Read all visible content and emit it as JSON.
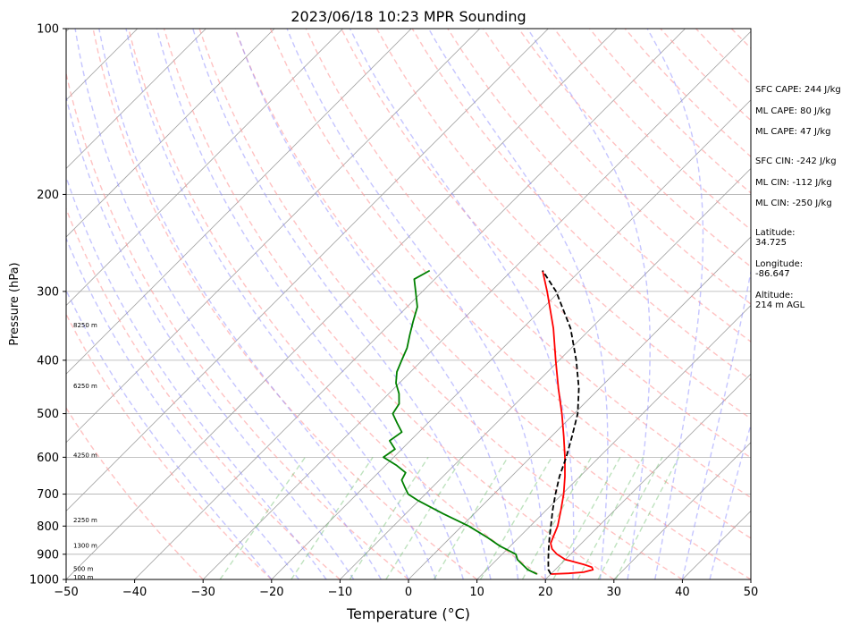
{
  "chart_data": {
    "type": "line",
    "title": "2023/06/18 10:23 MPR Sounding",
    "xlabel": "Temperature (°C)",
    "ylabel": "Pressure (hPa)",
    "xlim": [
      -50,
      50
    ],
    "ylim": [
      1000,
      100
    ],
    "y_scale": "log",
    "grid": true,
    "x_ticks": [
      -50,
      -40,
      -30,
      -20,
      -10,
      0,
      10,
      20,
      30,
      40,
      50
    ],
    "x_tick_labels": [
      "−50",
      "−40",
      "−30",
      "−20",
      "−10",
      "0",
      "10",
      "20",
      "30",
      "40",
      "50"
    ],
    "y_ticks": [
      100,
      200,
      300,
      400,
      500,
      600,
      700,
      800,
      900,
      1000
    ],
    "y_tick_labels": [
      "100",
      "200",
      "300",
      "400",
      "500",
      "600",
      "700",
      "800",
      "900",
      "1000"
    ],
    "height_labels": [
      {
        "p": 345,
        "label": "8250 m"
      },
      {
        "p": 445,
        "label": "6250 m"
      },
      {
        "p": 595,
        "label": "4250 m"
      },
      {
        "p": 780,
        "label": "2250 m"
      },
      {
        "p": 868,
        "label": "1300 m"
      },
      {
        "p": 957,
        "label": "500 m"
      },
      {
        "p": 990,
        "label": "100 m"
      }
    ],
    "series": [
      {
        "role": "temperature",
        "color": "#ff0000",
        "style": "solid",
        "p": [
          978,
          975,
          970,
          960,
          950,
          940,
          930,
          920,
          900,
          880,
          860,
          840,
          820,
          800,
          750,
          700,
          650,
          600,
          550,
          500,
          450,
          400,
          350,
          300,
          275
        ],
        "t": [
          20.0,
          22.5,
          24.5,
          25.5,
          25.0,
          23.5,
          21.8,
          20.0,
          18.0,
          16.5,
          15.5,
          15.0,
          14.5,
          14.0,
          12.2,
          10.2,
          7.8,
          5.0,
          1.8,
          -1.8,
          -6.0,
          -10.5,
          -15.5,
          -21.8,
          -25.5
        ]
      },
      {
        "role": "dewpoint",
        "color": "#008000",
        "style": "solid",
        "p": [
          978,
          960,
          940,
          920,
          900,
          870,
          840,
          800,
          760,
          720,
          700,
          680,
          660,
          640,
          620,
          600,
          580,
          560,
          540,
          520,
          500,
          480,
          460,
          440,
          420,
          400,
          380,
          360,
          340,
          320,
          300,
          285,
          275
        ],
        "t": [
          18.0,
          16.0,
          14.5,
          13.0,
          12.0,
          8.5,
          5.5,
          1.0,
          -4.5,
          -10.0,
          -12.5,
          -14.0,
          -15.5,
          -16.0,
          -18.5,
          -21.5,
          -21.0,
          -23.0,
          -22.5,
          -24.5,
          -26.5,
          -27.0,
          -28.5,
          -30.5,
          -32.0,
          -33.0,
          -34.0,
          -35.5,
          -37.0,
          -38.5,
          -41.0,
          -43.0,
          -42.0
        ]
      },
      {
        "role": "parcel",
        "color": "#000000",
        "style": "dashed",
        "p": [
          978,
          960,
          920,
          880,
          840,
          800,
          750,
          700,
          650,
          600,
          550,
          500,
          450,
          400,
          350,
          300,
          275
        ],
        "t": [
          20.0,
          19.0,
          17.5,
          16.0,
          14.5,
          13.0,
          11.0,
          9.0,
          7.0,
          5.2,
          3.0,
          0.5,
          -3.0,
          -7.5,
          -13.0,
          -20.5,
          -25.5
        ]
      }
    ],
    "annotations": [
      {
        "text": "SFC CAPE: 244 J/kg"
      },
      {
        "text": "ML CAPE: 80 J/kg"
      },
      {
        "text": "ML CAPE: 47 J/kg"
      },
      {
        "text": "SFC CIN: -242 J/kg"
      },
      {
        "text": "ML CIN: -112 J/kg"
      },
      {
        "text": "ML CIN: -250 J/kg"
      },
      {
        "text": "Latitude:\n34.725"
      },
      {
        "text": "Longitude:\n-86.647"
      },
      {
        "text": "Altitude:\n214 m AGL"
      }
    ],
    "colors": {
      "isotherm": "#a0a0a0",
      "dry_adiabat": "#ff9a9a",
      "moist_adiabat": "#8c8cff",
      "mixing_ratio": "#6fbf6f",
      "grid": "#b0b0b0"
    }
  }
}
